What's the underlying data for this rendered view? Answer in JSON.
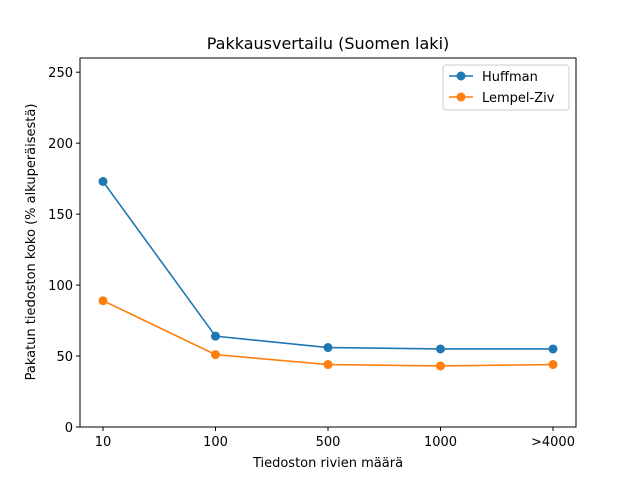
{
  "chart_data": {
    "type": "line",
    "title": "Pakkausvertailu (Suomen laki)",
    "xlabel": "Tiedoston rivien määrä",
    "ylabel": "Pakatun tiedoston koko (% alkuperäisestä)",
    "categories": [
      "10",
      "100",
      "500",
      "1000",
      ">4000"
    ],
    "ylim": [
      0,
      260
    ],
    "yticks": [
      0,
      50,
      100,
      150,
      200,
      250
    ],
    "grid": false,
    "legend_position": "top-right",
    "series": [
      {
        "name": "Huffman",
        "color": "#1f77b4",
        "values": [
          173,
          64,
          56,
          55,
          55
        ]
      },
      {
        "name": "Lempel-Ziv",
        "color": "#ff7f0e",
        "values": [
          89,
          51,
          44,
          43,
          44
        ]
      }
    ]
  }
}
